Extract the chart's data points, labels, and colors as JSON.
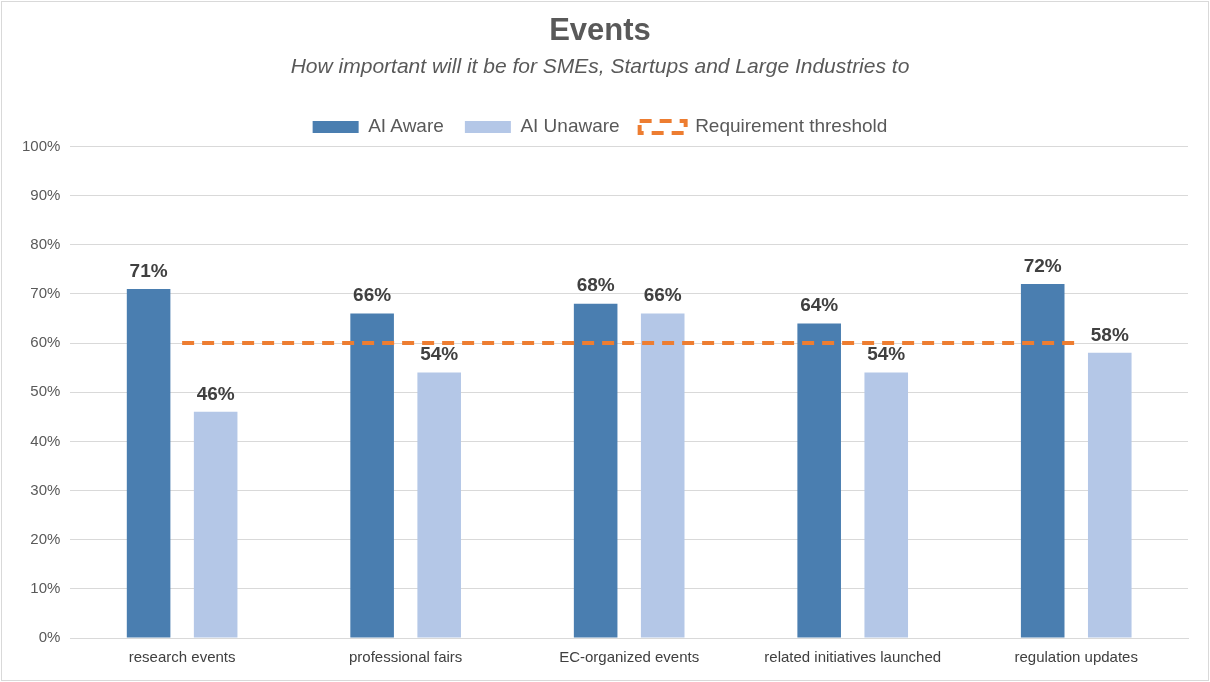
{
  "chart_data": {
    "type": "bar",
    "title": "Events",
    "subtitle": "How important will it be for SMEs, Startups and Large Industries to",
    "categories": [
      "research events",
      "professional fairs",
      "EC-organized events",
      "related initiatives launched",
      "regulation updates"
    ],
    "series": [
      {
        "name": "AI Aware",
        "color": "#4a7eb0",
        "values": [
          71,
          66,
          68,
          64,
          72
        ],
        "value_labels": [
          "71%",
          "66%",
          "68%",
          "64%",
          "72%"
        ]
      },
      {
        "name": "AI Unaware",
        "color": "#b4c7e7",
        "values": [
          46,
          54,
          66,
          54,
          58
        ],
        "value_labels": [
          "46%",
          "54%",
          "66%",
          "54%",
          "58%"
        ]
      }
    ],
    "ref_lines": [
      {
        "axis": "y",
        "value": 60,
        "label": "Requirement threshold",
        "color": "#ed7d31",
        "line_style": "dashed"
      }
    ],
    "ylim": [
      0,
      100
    ],
    "yticks": [
      {
        "value": 0,
        "label": "0%"
      },
      {
        "value": 10,
        "label": "10%"
      },
      {
        "value": 20,
        "label": "20%"
      },
      {
        "value": 30,
        "label": "30%"
      },
      {
        "value": 40,
        "label": "40%"
      },
      {
        "value": 50,
        "label": "50%"
      },
      {
        "value": 60,
        "label": "60%"
      },
      {
        "value": 70,
        "label": "70%"
      },
      {
        "value": 80,
        "label": "80%"
      },
      {
        "value": 90,
        "label": "90%"
      },
      {
        "value": 100,
        "label": "100%"
      }
    ],
    "grid": "y",
    "legend": "top"
  }
}
